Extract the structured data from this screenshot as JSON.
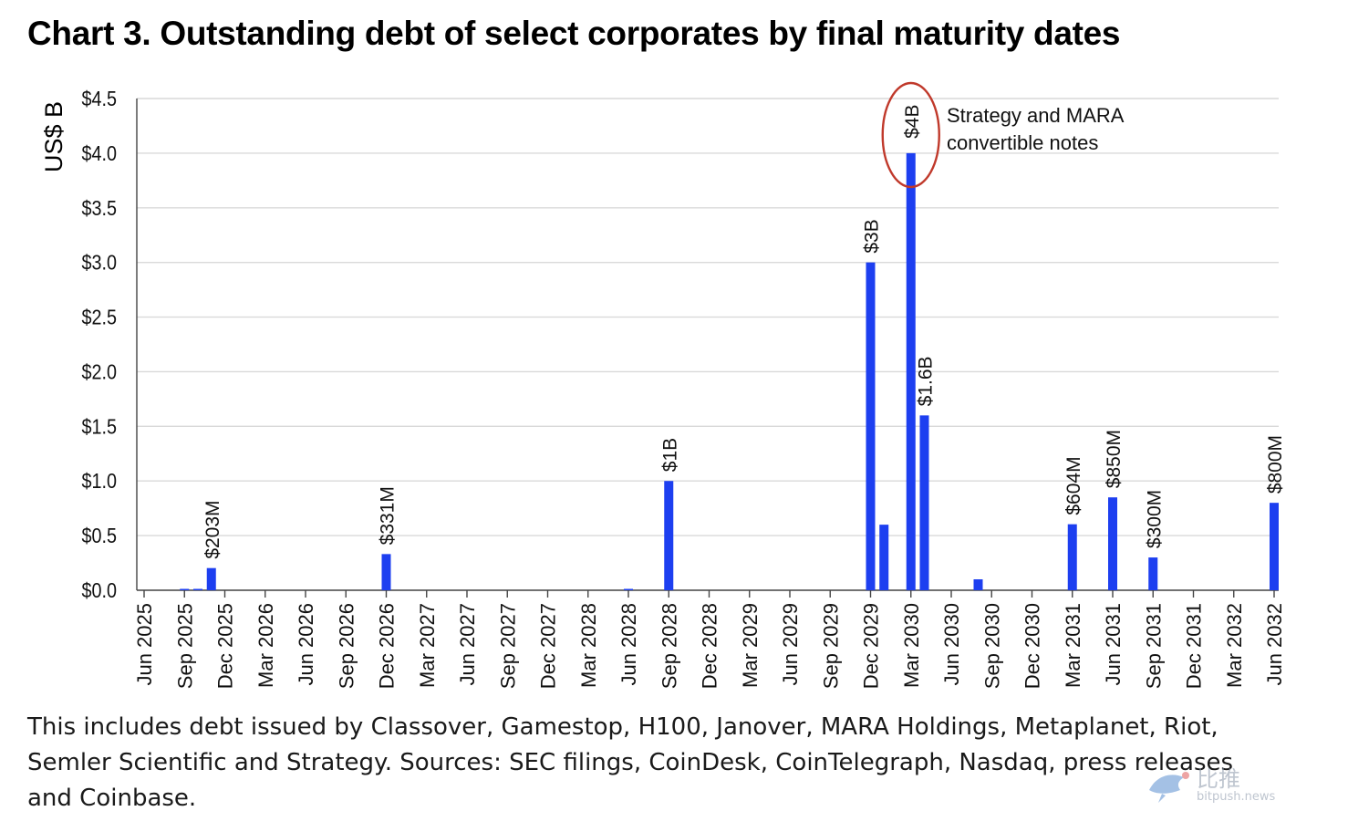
{
  "title": "Chart 3. Outstanding debt of select corporates by final maturity dates",
  "footnote": "This includes debt issued by Classover, Gamestop, H100, Janover, MARA Holdings, Metaplanet, Riot, Semler Scientific and Strategy. Sources: SEC filings, CoinDesk, CoinTelegraph, Nasdaq, press releases and Coinbase.",
  "watermark": {
    "name": "比推",
    "url": "bitpush.news",
    "logo_icon": "bird-logo-icon"
  },
  "colors": {
    "bar": "#1d3ff0",
    "grid": "#d9d9d9",
    "axis": "#444444",
    "highlight": "#c0392b"
  },
  "chart_data": {
    "type": "bar",
    "ylabel": "US$ B",
    "xlabel": "",
    "ylim": [
      0,
      4.5
    ],
    "yticks": [
      "$0.0",
      "$0.5",
      "$1.0",
      "$1.5",
      "$2.0",
      "$2.5",
      "$3.0",
      "$3.5",
      "$4.0",
      "$4.5"
    ],
    "ytick_values": [
      0,
      0.5,
      1.0,
      1.5,
      2.0,
      2.5,
      3.0,
      3.5,
      4.0,
      4.5
    ],
    "x_tick_labels": [
      "Jun 2025",
      "Sep 2025",
      "Dec 2025",
      "Mar 2026",
      "Jun 2026",
      "Sep 2026",
      "Dec 2026",
      "Mar 2027",
      "Jun 2027",
      "Sep 2027",
      "Dec 2027",
      "Mar 2028",
      "Jun 2028",
      "Sep 2028",
      "Dec 2028",
      "Mar 2029",
      "Jun 2029",
      "Sep 2029",
      "Dec 2029",
      "Mar 2030",
      "Jun 2030",
      "Sep 2030",
      "Dec 2030",
      "Mar 2031",
      "Jun 2031",
      "Sep 2031",
      "Dec 2031",
      "Mar 2032",
      "Jun 2032"
    ],
    "x_tick_dates": [
      "2025-06",
      "2025-09",
      "2025-12",
      "2026-03",
      "2026-06",
      "2026-09",
      "2026-12",
      "2027-03",
      "2027-06",
      "2027-09",
      "2027-12",
      "2028-03",
      "2028-06",
      "2028-09",
      "2028-12",
      "2029-03",
      "2029-06",
      "2029-09",
      "2029-12",
      "2030-03",
      "2030-06",
      "2030-09",
      "2030-12",
      "2031-03",
      "2031-06",
      "2031-09",
      "2031-12",
      "2032-03",
      "2032-06"
    ],
    "bars": [
      {
        "date": "2025-09",
        "value": 0.005,
        "label": ""
      },
      {
        "date": "2025-10",
        "value": 0.005,
        "label": ""
      },
      {
        "date": "2025-11",
        "value": 0.203,
        "label": "$203M"
      },
      {
        "date": "2026-12",
        "value": 0.331,
        "label": "$331M"
      },
      {
        "date": "2028-06",
        "value": 0.005,
        "label": ""
      },
      {
        "date": "2028-09",
        "value": 1.0,
        "label": "$1B"
      },
      {
        "date": "2029-12",
        "value": 3.0,
        "label": "$3B"
      },
      {
        "date": "2030-01",
        "value": 0.6,
        "label": ""
      },
      {
        "date": "2030-03",
        "value": 4.0,
        "label": "$4B",
        "highlight": true
      },
      {
        "date": "2030-04",
        "value": 1.6,
        "label": "$1.6B"
      },
      {
        "date": "2030-08",
        "value": 0.1,
        "label": ""
      },
      {
        "date": "2031-03",
        "value": 0.604,
        "label": "$604M"
      },
      {
        "date": "2031-06",
        "value": 0.85,
        "label": "$850M"
      },
      {
        "date": "2031-09",
        "value": 0.3,
        "label": "$300M"
      },
      {
        "date": "2032-06",
        "value": 0.8,
        "label": "$800M"
      }
    ],
    "annotation": {
      "text_lines": [
        "Strategy and MARA",
        "convertible notes"
      ],
      "target_date": "2030-03"
    },
    "grid": true,
    "legend": "none"
  }
}
